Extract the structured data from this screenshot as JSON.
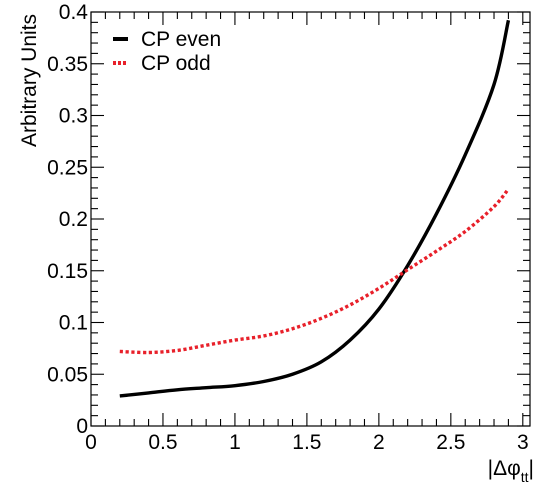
{
  "chart_data": {
    "type": "line",
    "xlabel": "|Δφ",
    "xlabel_sub": "tt",
    "xlabel_tail": "|",
    "ylabel": "Arbitrary Units",
    "xlim": [
      0,
      3.05
    ],
    "ylim": [
      0,
      0.4
    ],
    "x_ticks": [
      0,
      0.5,
      1,
      1.5,
      2,
      2.5,
      3
    ],
    "x_tick_labels": [
      "0",
      "0.5",
      "1",
      "1.5",
      "2",
      "2.5",
      "3"
    ],
    "y_ticks": [
      0,
      0.05,
      0.1,
      0.15,
      0.2,
      0.25,
      0.3,
      0.35,
      0.4
    ],
    "y_tick_labels": [
      "0",
      "0.05",
      "0.1",
      "0.15",
      "0.2",
      "0.25",
      "0.3",
      "0.35",
      "0.4"
    ],
    "grid": false,
    "legend_position": "top-left",
    "series": [
      {
        "name": "CP even",
        "color": "#000000",
        "style": "solid",
        "x": [
          0.2,
          0.4,
          0.6,
          0.8,
          1.0,
          1.2,
          1.4,
          1.6,
          1.8,
          2.0,
          2.2,
          2.4,
          2.6,
          2.8,
          2.9
        ],
        "y": [
          0.029,
          0.032,
          0.035,
          0.037,
          0.039,
          0.043,
          0.05,
          0.062,
          0.083,
          0.113,
          0.155,
          0.205,
          0.262,
          0.33,
          0.392
        ]
      },
      {
        "name": "CP odd",
        "color": "#e8202a",
        "style": "dotted",
        "x": [
          0.2,
          0.4,
          0.6,
          0.8,
          1.0,
          1.2,
          1.4,
          1.6,
          1.8,
          2.0,
          2.2,
          2.4,
          2.6,
          2.8,
          2.9
        ],
        "y": [
          0.072,
          0.071,
          0.073,
          0.078,
          0.083,
          0.087,
          0.094,
          0.104,
          0.117,
          0.133,
          0.151,
          0.169,
          0.188,
          0.212,
          0.229
        ]
      }
    ]
  }
}
